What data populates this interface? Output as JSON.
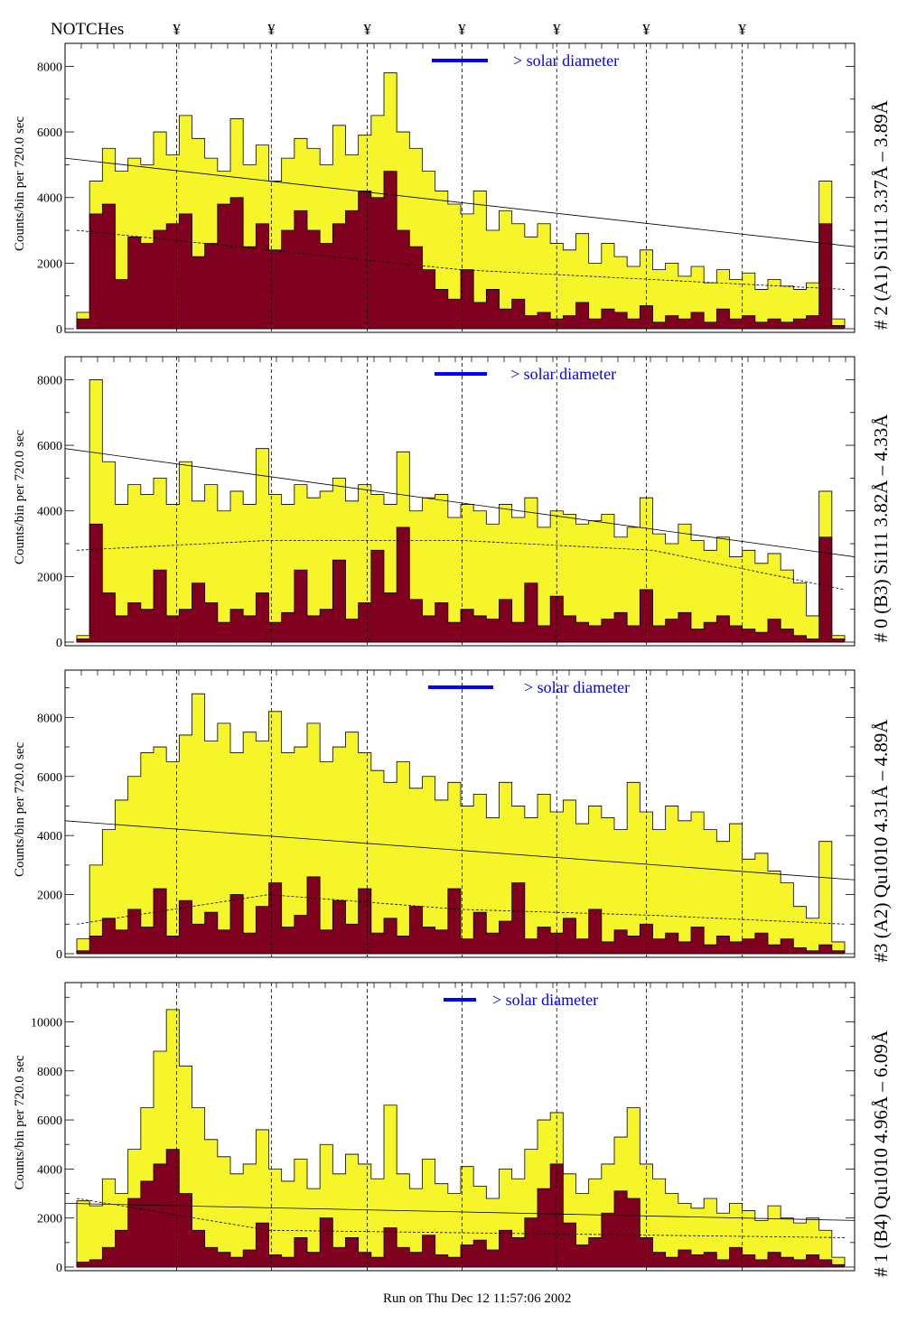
{
  "header": {
    "notches_label": "NOTCHes",
    "notch_glyph": "¥"
  },
  "footer": {
    "run_text": "Run on Thu Dec 12 11:57:06 2002"
  },
  "colors": {
    "total": "#f5f52a",
    "maroon": "#800020",
    "legend": "#0000ff"
  },
  "chart_data": [
    {
      "type": "bar",
      "title": "# 2 (A1) Si111  3.37Å – 3.89Å",
      "ylabel": "Counts/bin per   720.0 sec",
      "legend": "> solar diameter",
      "ylim": [
        0,
        8700
      ],
      "yticks": [
        0,
        2000,
        4000,
        6000,
        8000
      ],
      "notch_bins": [
        7.8,
        15.2,
        22.7,
        30.1,
        37.5,
        44.5,
        52.0
      ],
      "trend": [
        5200,
        2500
      ],
      "dashed": [
        3000,
        2400,
        1800,
        1500,
        1200
      ],
      "series": [
        {
          "name": "total",
          "values": [
            500,
            4500,
            5500,
            4800,
            5200,
            5000,
            6000,
            5300,
            6500,
            5800,
            5200,
            4800,
            6400,
            5000,
            5600,
            4500,
            5200,
            5800,
            5500,
            5000,
            6200,
            5300,
            5900,
            6500,
            7800,
            6000,
            5500,
            4800,
            4200,
            3800,
            3500,
            4200,
            3000,
            3600,
            3200,
            2800,
            3200,
            2600,
            2400,
            2900,
            2000,
            2600,
            2200,
            1900,
            2400,
            1800,
            2000,
            1600,
            1900,
            1400,
            1800,
            1500,
            1700,
            1200,
            1500,
            1300,
            1200,
            1400,
            4500,
            300
          ]
        },
        {
          "name": "selected",
          "values": [
            300,
            3500,
            3800,
            1500,
            2800,
            2600,
            3000,
            3200,
            3500,
            2200,
            2600,
            3800,
            4000,
            2500,
            3200,
            2400,
            3000,
            3600,
            3000,
            2600,
            3200,
            3600,
            4200,
            4000,
            4800,
            3000,
            2500,
            1800,
            1200,
            900,
            1800,
            800,
            1200,
            600,
            900,
            400,
            500,
            300,
            400,
            800,
            300,
            600,
            500,
            300,
            700,
            200,
            400,
            300,
            500,
            200,
            600,
            300,
            400,
            200,
            300,
            200,
            300,
            400,
            3200,
            100
          ]
        }
      ]
    },
    {
      "type": "bar",
      "title": "# 0 (B3) Si111  3.82Å – 4.33Å",
      "ylabel": "Counts/bin per   720.0 sec",
      "legend": "> solar diameter",
      "ylim": [
        0,
        8700
      ],
      "yticks": [
        0,
        2000,
        4000,
        6000,
        8000
      ],
      "notch_bins": [
        7.8,
        15.2,
        22.7,
        30.1,
        37.5,
        44.5,
        52.0
      ],
      "trend": [
        5900,
        2600
      ],
      "dashed": [
        2800,
        3100,
        3100,
        2800,
        1600
      ],
      "series": [
        {
          "name": "total",
          "values": [
            200,
            8000,
            5500,
            4200,
            4800,
            4500,
            5000,
            4200,
            5500,
            4300,
            4800,
            4000,
            4600,
            4200,
            5900,
            4500,
            4200,
            4800,
            4400,
            4600,
            5000,
            4300,
            4800,
            4500,
            4200,
            5800,
            4000,
            4400,
            4500,
            3800,
            4200,
            4000,
            3600,
            4200,
            3800,
            4400,
            3500,
            4000,
            3900,
            3600,
            3700,
            3900,
            3200,
            3500,
            4400,
            3300,
            3000,
            3600,
            3100,
            2800,
            3200,
            2600,
            2800,
            2400,
            2700,
            2200,
            1800,
            800,
            4600,
            200
          ]
        },
        {
          "name": "selected",
          "values": [
            100,
            3600,
            1500,
            800,
            1200,
            1000,
            2200,
            800,
            1000,
            1800,
            1200,
            600,
            1000,
            800,
            1500,
            600,
            900,
            2200,
            800,
            1000,
            2500,
            700,
            1200,
            2800,
            1500,
            3500,
            1300,
            800,
            1200,
            600,
            1000,
            800,
            700,
            1300,
            600,
            1800,
            500,
            1400,
            800,
            600,
            500,
            700,
            900,
            500,
            1600,
            500,
            700,
            900,
            400,
            600,
            800,
            500,
            400,
            300,
            700,
            400,
            200,
            100,
            3200,
            100
          ]
        }
      ]
    },
    {
      "type": "bar",
      "title": "#3 (A2) Qu1010  4.31Å – 4.89Å",
      "ylabel": "Counts/bin per   720.0 sec",
      "legend": "> solar diameter",
      "ylim": [
        0,
        9600
      ],
      "yticks": [
        0,
        2000,
        4000,
        6000,
        8000
      ],
      "notch_bins": [
        7.8,
        15.2,
        22.7,
        30.1,
        37.5,
        44.5,
        52.0
      ],
      "trend": [
        4500,
        2500
      ],
      "dashed": [
        1000,
        2000,
        1500,
        1300,
        1000
      ],
      "series": [
        {
          "name": "total",
          "values": [
            500,
            3000,
            4200,
            5200,
            6000,
            6800,
            7000,
            6500,
            7400,
            8800,
            7200,
            7800,
            6800,
            7500,
            7200,
            8200,
            6800,
            7000,
            7800,
            6500,
            7000,
            7500,
            6800,
            6200,
            5800,
            6500,
            5600,
            6000,
            5200,
            5800,
            5000,
            5400,
            4600,
            5800,
            5000,
            4600,
            5400,
            4800,
            5200,
            4400,
            5000,
            4600,
            4200,
            5800,
            4800,
            4200,
            5000,
            4500,
            4800,
            4200,
            3800,
            4400,
            3200,
            3400,
            2800,
            2400,
            1600,
            1200,
            3800,
            400
          ]
        },
        {
          "name": "selected",
          "values": [
            100,
            600,
            1200,
            800,
            1500,
            900,
            2200,
            600,
            1800,
            1000,
            1400,
            800,
            2000,
            700,
            1600,
            2400,
            900,
            1300,
            2600,
            800,
            1800,
            1000,
            2200,
            700,
            1200,
            600,
            1600,
            900,
            800,
            2200,
            500,
            1400,
            700,
            1100,
            2400,
            500,
            900,
            700,
            1200,
            500,
            1500,
            400,
            800,
            600,
            1000,
            500,
            700,
            400,
            900,
            300,
            600,
            400,
            500,
            700,
            300,
            500,
            200,
            100,
            300,
            100
          ]
        }
      ]
    },
    {
      "type": "bar",
      "title": "# 1 (B4) Qu1010 4.96Å – 6.09Å",
      "ylabel": "Counts/bin per   720.0 sec",
      "legend": "> solar diameter",
      "ylim": [
        0,
        11600
      ],
      "yticks": [
        0,
        2000,
        4000,
        6000,
        8000,
        10000
      ],
      "notch_bins": [
        7.8,
        15.2,
        22.7,
        30.1,
        37.5,
        44.5,
        52.0
      ],
      "trend": [
        2600,
        1900
      ],
      "dashed": [
        2800,
        1500,
        1400,
        1300,
        1200
      ],
      "series": [
        {
          "name": "total",
          "values": [
            2700,
            2500,
            3600,
            3000,
            4800,
            6500,
            8800,
            10500,
            8200,
            6500,
            5200,
            4500,
            3800,
            4200,
            5600,
            4000,
            3500,
            4400,
            3200,
            5000,
            3800,
            4600,
            4200,
            3600,
            6600,
            3800,
            3200,
            4400,
            3400,
            3000,
            4100,
            3300,
            2800,
            4000,
            3600,
            4800,
            6000,
            6300,
            3800,
            3000,
            3600,
            4200,
            5300,
            6500,
            4200,
            3600,
            3000,
            2600,
            2400,
            2800,
            2200,
            2600,
            2300,
            1900,
            2500,
            2000,
            1800,
            2000,
            1500,
            400
          ]
        },
        {
          "name": "selected",
          "values": [
            200,
            300,
            800,
            1500,
            2800,
            3500,
            4200,
            4800,
            3000,
            1500,
            800,
            600,
            400,
            700,
            1800,
            500,
            400,
            1200,
            600,
            2000,
            800,
            1200,
            600,
            400,
            1600,
            800,
            600,
            1300,
            500,
            400,
            900,
            1100,
            700,
            1500,
            1200,
            2000,
            3200,
            4200,
            1800,
            900,
            1200,
            2200,
            3100,
            2800,
            1200,
            600,
            400,
            700,
            500,
            600,
            300,
            800,
            500,
            300,
            600,
            400,
            300,
            500,
            300,
            100
          ]
        }
      ]
    }
  ]
}
